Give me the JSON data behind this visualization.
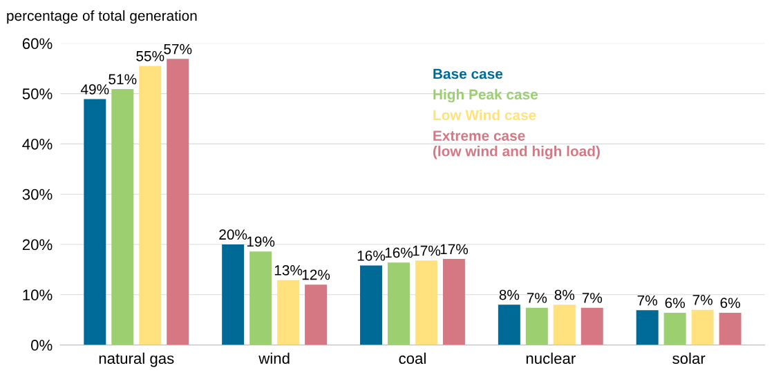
{
  "chart_data": {
    "type": "bar",
    "ylabel": "percentage of total generation",
    "categories": [
      "natural gas",
      "wind",
      "coal",
      "nuclear",
      "solar"
    ],
    "series": [
      {
        "name": "Base case",
        "color": "#006a96",
        "values": [
          48.9,
          20.0,
          15.8,
          8.0,
          6.9
        ],
        "value_labels": [
          "49%",
          "20%",
          "16%",
          "8%",
          "7%"
        ]
      },
      {
        "name": "High Peak case",
        "color": "#9bcf6f",
        "values": [
          50.9,
          18.6,
          16.4,
          7.4,
          6.4
        ],
        "value_labels": [
          "51%",
          "19%",
          "16%",
          "7%",
          "6%"
        ]
      },
      {
        "name": "Low Wind case",
        "color": "#ffe17d",
        "values": [
          55.5,
          12.9,
          16.8,
          8.0,
          7.0
        ],
        "value_labels": [
          "55%",
          "13%",
          "17%",
          "8%",
          "7%"
        ]
      },
      {
        "name": "Extreme case\n(low wind and high load)",
        "color": "#d57883",
        "values": [
          56.9,
          12.0,
          17.1,
          7.4,
          6.4
        ],
        "value_labels": [
          "57%",
          "12%",
          "17%",
          "7%",
          "6%"
        ]
      }
    ],
    "ylim": [
      0,
      60
    ],
    "yticks": [
      {
        "value": 0,
        "label": "0%"
      },
      {
        "value": 10,
        "label": "10%"
      },
      {
        "value": 20,
        "label": "20%"
      },
      {
        "value": 30,
        "label": "30%"
      },
      {
        "value": 40,
        "label": "40%"
      },
      {
        "value": 50,
        "label": "50%"
      },
      {
        "value": 60,
        "label": "60%"
      }
    ],
    "grid": "y",
    "legend": "top"
  }
}
